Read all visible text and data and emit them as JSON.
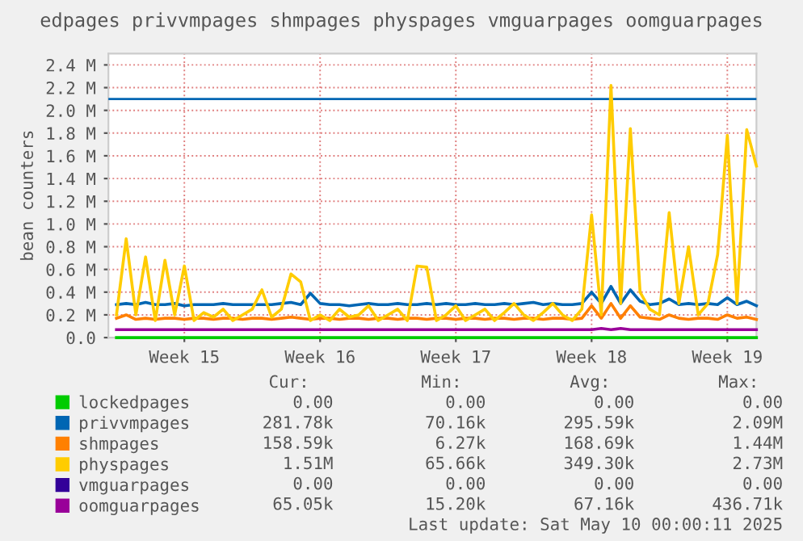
{
  "chart_data": {
    "type": "line",
    "title": "edpages privvmpages shmpages physpages vmguarpages oomguarpages",
    "ylabel": "bean counters",
    "x": [
      "2025-04-07T00:00",
      "2025-04-07T12:00",
      "2025-04-08T00:00",
      "2025-04-08T12:00",
      "2025-04-09T00:00",
      "2025-04-09T12:00",
      "2025-04-10T00:00",
      "2025-04-10T12:00",
      "2025-04-11T00:00",
      "2025-04-11T12:00",
      "2025-04-12T00:00",
      "2025-04-12T12:00",
      "2025-04-13T00:00",
      "2025-04-13T12:00",
      "2025-04-14T00:00",
      "2025-04-14T12:00",
      "2025-04-15T00:00",
      "2025-04-15T12:00",
      "2025-04-16T00:00",
      "2025-04-16T12:00",
      "2025-04-17T00:00",
      "2025-04-17T12:00",
      "2025-04-18T00:00",
      "2025-04-18T12:00",
      "2025-04-19T00:00",
      "2025-04-19T12:00",
      "2025-04-20T00:00",
      "2025-04-20T12:00",
      "2025-04-21T00:00",
      "2025-04-21T12:00",
      "2025-04-22T00:00",
      "2025-04-22T12:00",
      "2025-04-23T00:00",
      "2025-04-23T12:00",
      "2025-04-24T00:00",
      "2025-04-24T12:00",
      "2025-04-25T00:00",
      "2025-04-25T12:00",
      "2025-04-26T00:00",
      "2025-04-26T12:00",
      "2025-04-27T00:00",
      "2025-04-27T12:00",
      "2025-04-28T00:00",
      "2025-04-28T12:00",
      "2025-04-29T00:00",
      "2025-04-29T12:00",
      "2025-04-30T00:00",
      "2025-04-30T12:00",
      "2025-05-01T00:00",
      "2025-05-01T12:00",
      "2025-05-02T00:00",
      "2025-05-02T12:00",
      "2025-05-03T00:00",
      "2025-05-03T12:00",
      "2025-05-04T00:00",
      "2025-05-04T12:00",
      "2025-05-05T00:00",
      "2025-05-05T12:00",
      "2025-05-06T00:00",
      "2025-05-06T12:00",
      "2025-05-07T00:00",
      "2025-05-07T12:00",
      "2025-05-08T00:00",
      "2025-05-08T12:00",
      "2025-05-09T00:00",
      "2025-05-09T12:00",
      "2025-05-10T00:00"
    ],
    "series": [
      {
        "name": "lockedpages",
        "color": "#00cc00",
        "values": [
          0,
          0,
          0,
          0,
          0,
          0,
          0,
          0,
          0,
          0,
          0,
          0,
          0,
          0,
          0,
          0,
          0,
          0,
          0,
          0,
          0,
          0,
          0,
          0,
          0,
          0,
          0,
          0,
          0,
          0,
          0,
          0,
          0,
          0,
          0,
          0,
          0,
          0,
          0,
          0,
          0,
          0,
          0,
          0,
          0,
          0,
          0,
          0,
          0,
          0,
          0,
          0,
          0,
          0,
          0,
          0,
          0,
          0,
          0,
          0,
          0,
          0,
          0,
          0,
          0,
          0,
          0
        ]
      },
      {
        "name": "privvmpages",
        "color": "#0066b3",
        "values": [
          0.29,
          0.3,
          0.29,
          0.31,
          0.29,
          0.29,
          0.3,
          0.28,
          0.29,
          0.29,
          0.29,
          0.3,
          0.29,
          0.29,
          0.29,
          0.29,
          0.29,
          0.3,
          0.31,
          0.29,
          0.39,
          0.3,
          0.29,
          0.29,
          0.28,
          0.29,
          0.3,
          0.29,
          0.29,
          0.3,
          0.29,
          0.29,
          0.3,
          0.29,
          0.3,
          0.29,
          0.29,
          0.3,
          0.29,
          0.29,
          0.3,
          0.29,
          0.3,
          0.31,
          0.29,
          0.3,
          0.29,
          0.29,
          0.3,
          0.4,
          0.3,
          0.45,
          0.3,
          0.42,
          0.32,
          0.29,
          0.3,
          0.34,
          0.29,
          0.3,
          0.29,
          0.3,
          0.29,
          0.35,
          0.29,
          0.32,
          0.28
        ]
      },
      {
        "name": "shmpages",
        "color": "#ff8000",
        "values": [
          0.17,
          0.2,
          0.16,
          0.17,
          0.16,
          0.17,
          0.17,
          0.16,
          0.17,
          0.17,
          0.16,
          0.17,
          0.17,
          0.16,
          0.17,
          0.17,
          0.16,
          0.17,
          0.18,
          0.17,
          0.16,
          0.17,
          0.17,
          0.16,
          0.17,
          0.17,
          0.16,
          0.17,
          0.17,
          0.16,
          0.17,
          0.17,
          0.16,
          0.17,
          0.17,
          0.16,
          0.17,
          0.17,
          0.16,
          0.17,
          0.17,
          0.16,
          0.17,
          0.17,
          0.16,
          0.17,
          0.17,
          0.16,
          0.17,
          0.28,
          0.17,
          0.3,
          0.17,
          0.28,
          0.18,
          0.17,
          0.16,
          0.2,
          0.17,
          0.16,
          0.17,
          0.17,
          0.16,
          0.2,
          0.17,
          0.18,
          0.16
        ]
      },
      {
        "name": "physpages",
        "color": "#ffcc00",
        "values": [
          0.2,
          0.87,
          0.2,
          0.71,
          0.15,
          0.68,
          0.2,
          0.63,
          0.15,
          0.22,
          0.18,
          0.25,
          0.15,
          0.2,
          0.25,
          0.42,
          0.18,
          0.25,
          0.56,
          0.49,
          0.15,
          0.2,
          0.15,
          0.25,
          0.18,
          0.2,
          0.28,
          0.15,
          0.2,
          0.25,
          0.15,
          0.63,
          0.62,
          0.15,
          0.2,
          0.28,
          0.15,
          0.2,
          0.25,
          0.15,
          0.22,
          0.3,
          0.2,
          0.15,
          0.22,
          0.3,
          0.2,
          0.15,
          0.25,
          1.08,
          0.2,
          2.22,
          0.3,
          1.84,
          0.4,
          0.25,
          0.2,
          1.1,
          0.3,
          0.8,
          0.2,
          0.3,
          0.73,
          1.78,
          0.3,
          1.83,
          1.51
        ]
      },
      {
        "name": "vmguarpages",
        "color": "#330099",
        "values": [
          null,
          null,
          null,
          null,
          null,
          null,
          null,
          null,
          null,
          null,
          null,
          null,
          null,
          null,
          null,
          null,
          null,
          null,
          null,
          null,
          null,
          null,
          null,
          null,
          null,
          null,
          null,
          null,
          null,
          null,
          null,
          null,
          null,
          null,
          null,
          null,
          null,
          null,
          null,
          null,
          null,
          null,
          null,
          null,
          null,
          null,
          null,
          null,
          null,
          null,
          null,
          null,
          null,
          null,
          null,
          null,
          null,
          null,
          null,
          null,
          null,
          null,
          null,
          null,
          null,
          null,
          null
        ]
      },
      {
        "name": "oomguarpages",
        "color": "#990099",
        "values": [
          0.07,
          0.07,
          0.07,
          0.07,
          0.07,
          0.07,
          0.07,
          0.07,
          0.07,
          0.07,
          0.07,
          0.07,
          0.07,
          0.07,
          0.07,
          0.07,
          0.07,
          0.07,
          0.07,
          0.07,
          0.07,
          0.07,
          0.07,
          0.07,
          0.07,
          0.07,
          0.07,
          0.07,
          0.07,
          0.07,
          0.07,
          0.07,
          0.07,
          0.07,
          0.07,
          0.07,
          0.07,
          0.07,
          0.07,
          0.07,
          0.07,
          0.07,
          0.07,
          0.07,
          0.07,
          0.07,
          0.07,
          0.07,
          0.07,
          0.07,
          0.08,
          0.07,
          0.08,
          0.07,
          0.07,
          0.07,
          0.07,
          0.07,
          0.07,
          0.07,
          0.07,
          0.07,
          0.07,
          0.07,
          0.07,
          0.07,
          0.07
        ]
      }
    ],
    "ref_lines": [
      {
        "axis": "y",
        "value": 2.1,
        "color": "#0066b3"
      }
    ],
    "ylim": [
      0,
      2.5
    ],
    "yticks": [
      {
        "value": 0,
        "label": "0.0"
      },
      {
        "value": 0.2,
        "label": "0.2 M"
      },
      {
        "value": 0.4,
        "label": "0.4 M"
      },
      {
        "value": 0.6,
        "label": "0.6 M"
      },
      {
        "value": 0.8,
        "label": "0.8 M"
      },
      {
        "value": 1.0,
        "label": "1.0 M"
      },
      {
        "value": 1.2,
        "label": "1.2 M"
      },
      {
        "value": 1.4,
        "label": "1.4 M"
      },
      {
        "value": 1.6,
        "label": "1.6 M"
      },
      {
        "value": 1.8,
        "label": "1.8 M"
      },
      {
        "value": 2.0,
        "label": "2.0 M"
      },
      {
        "value": 2.2,
        "label": "2.2 M"
      },
      {
        "value": 2.4,
        "label": "2.4 M"
      }
    ],
    "xlim": [
      "2025-04-06T14:00",
      "2025-05-10T00:00"
    ],
    "xticks": [
      {
        "value": "2025-04-10T12:00",
        "label": "Week 15"
      },
      {
        "value": "2025-04-17T12:00",
        "label": "Week 16"
      },
      {
        "value": "2025-04-24T12:00",
        "label": "Week 17"
      },
      {
        "value": "2025-05-01T12:00",
        "label": "Week 18"
      },
      {
        "value": "2025-05-08T12:00",
        "label": "Week 19"
      }
    ],
    "grid": true,
    "legend": "bottom left",
    "line_style": "solid",
    "marker": "none",
    "annotations": [
      "Cur:",
      "Min:",
      "Avg:",
      "Max:",
      "0.00",
      "0.00",
      "0.00",
      "0.00",
      "281.78k",
      "70.16k",
      "295.59k",
      "2.09M",
      "158.59k",
      "6.27k",
      "168.69k",
      "1.44M",
      "1.51M",
      "65.66k",
      "349.30k",
      "2.73M",
      "0.00",
      "0.00",
      "0.00",
      "0.00",
      "65.05k",
      "15.20k",
      "67.16k",
      "436.71k",
      "Last update: Sat May 10 00:00:11 2025"
    ]
  }
}
